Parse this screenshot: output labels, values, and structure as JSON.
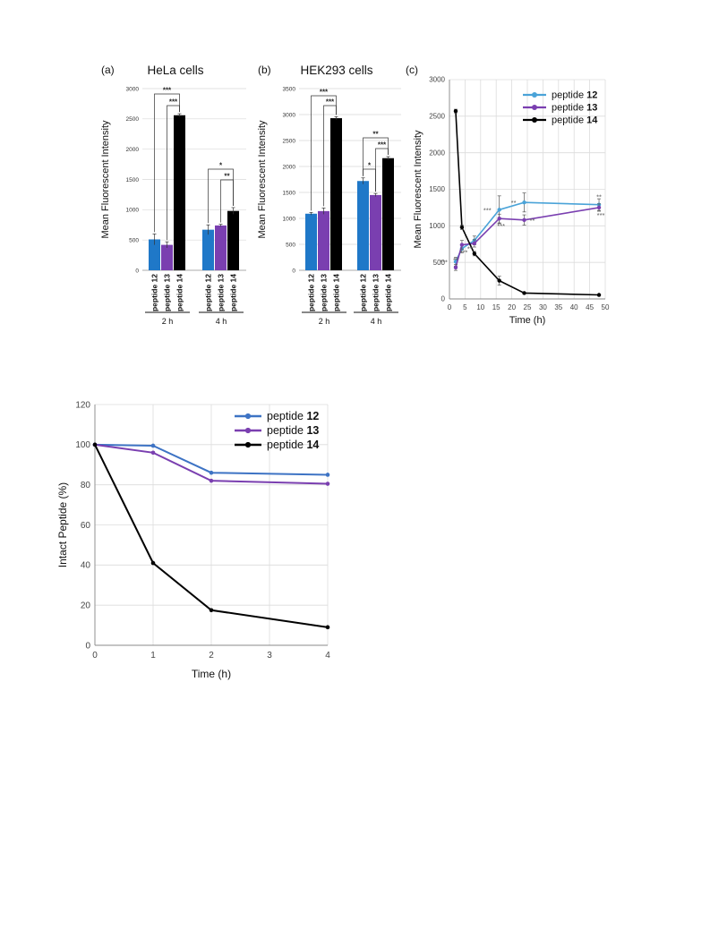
{
  "chart_data": [
    {
      "type": "bar",
      "panel_label": "(a)",
      "title": "HeLa cells",
      "ylabel": "Mean Fluorescent Intensity",
      "ylim": [
        0,
        3000
      ],
      "yticks": [
        0,
        500,
        1000,
        1500,
        2000,
        2500,
        3000
      ],
      "groups": [
        "2 h",
        "4 h"
      ],
      "categories": [
        "peptide 12",
        "peptide 13",
        "peptide 14"
      ],
      "series_colors": [
        "#1f78c8",
        "#7a3fb0",
        "#000000"
      ],
      "values": [
        [
          510,
          420,
          2560
        ],
        [
          670,
          740,
          980
        ]
      ],
      "errors": [
        [
          90,
          50,
          25
        ],
        [
          80,
          20,
          55
        ]
      ],
      "significance": [
        {
          "group": 0,
          "from": 0,
          "to": 2,
          "label": "***"
        },
        {
          "group": 0,
          "from": 1,
          "to": 2,
          "label": "***"
        },
        {
          "group": 1,
          "from": 0,
          "to": 2,
          "label": "*"
        },
        {
          "group": 1,
          "from": 1,
          "to": 2,
          "label": "**"
        }
      ]
    },
    {
      "type": "bar",
      "panel_label": "(b)",
      "title": "HEK293 cells",
      "ylabel": "Mean Fluorescent Intensity",
      "ylim": [
        0,
        3500
      ],
      "yticks": [
        0,
        500,
        1000,
        1500,
        2000,
        2500,
        3000,
        3500
      ],
      "groups": [
        "2 h",
        "4 h"
      ],
      "categories": [
        "peptide 12",
        "peptide 13",
        "peptide 14"
      ],
      "series_colors": [
        "#1f78c8",
        "#7a3fb0",
        "#000000"
      ],
      "values": [
        [
          1090,
          1140,
          2930
        ],
        [
          1720,
          1450,
          2160
        ]
      ],
      "errors": [
        [
          25,
          60,
          30
        ],
        [
          60,
          30,
          30
        ]
      ],
      "significance": [
        {
          "group": 0,
          "from": 0,
          "to": 2,
          "label": "***"
        },
        {
          "group": 0,
          "from": 1,
          "to": 2,
          "label": "***"
        },
        {
          "group": 1,
          "from": 0,
          "to": 2,
          "label": "**"
        },
        {
          "group": 1,
          "from": 0,
          "to": 1,
          "label": "*"
        },
        {
          "group": 1,
          "from": 1,
          "to": 2,
          "label": "***"
        }
      ]
    },
    {
      "type": "line",
      "panel_label": "(c)",
      "xlabel": "Time (h)",
      "ylabel": "Mean Fluorescent Intensity",
      "xlim": [
        0,
        50
      ],
      "ylim": [
        0,
        3000
      ],
      "xticks": [
        0,
        5,
        10,
        15,
        20,
        25,
        30,
        35,
        40,
        45,
        50
      ],
      "yticks": [
        0,
        500,
        1000,
        1500,
        2000,
        2500,
        3000
      ],
      "grid": true,
      "legend": "top-right",
      "series": [
        {
          "name": "peptide 12",
          "color": "#4aa3d8",
          "x": [
            2,
            4,
            8,
            16,
            24,
            48
          ],
          "y": [
            510,
            690,
            800,
            1220,
            1320,
            1290
          ],
          "err": [
            60,
            60,
            60,
            190,
            130,
            80
          ]
        },
        {
          "name": "peptide 13",
          "color": "#7a3fb0",
          "x": [
            2,
            4,
            8,
            16,
            24,
            48
          ],
          "y": [
            430,
            740,
            760,
            1100,
            1080,
            1250
          ],
          "err": [
            40,
            60,
            50,
            60,
            70,
            50
          ]
        },
        {
          "name": "peptide 14",
          "color": "#000000",
          "x": [
            2,
            4,
            8,
            16,
            24,
            48
          ],
          "y": [
            2570,
            980,
            620,
            250,
            80,
            55
          ],
          "err": [
            25,
            30,
            30,
            60,
            10,
            5
          ]
        }
      ],
      "annotations": [
        {
          "x": 2,
          "y": 510,
          "label": "***",
          "pos": "left"
        },
        {
          "x": 2,
          "y": 430,
          "label": "**",
          "pos": "above"
        },
        {
          "x": 4,
          "y": 690,
          "label": "**",
          "pos": "right"
        },
        {
          "x": 4,
          "y": 740,
          "label": "***",
          "pos": "below"
        },
        {
          "x": 16,
          "y": 1220,
          "label": "***",
          "pos": "left"
        },
        {
          "x": 16,
          "y": 1100,
          "label": "***",
          "pos": "below"
        },
        {
          "x": 24,
          "y": 1320,
          "label": "**",
          "pos": "left"
        },
        {
          "x": 24,
          "y": 1080,
          "label": "**",
          "pos": "right"
        },
        {
          "x": 48,
          "y": 1290,
          "label": "**",
          "pos": "above"
        },
        {
          "x": 48,
          "y": 1250,
          "label": "***",
          "pos": "below"
        }
      ]
    },
    {
      "type": "line",
      "xlabel": "Time  (h)",
      "ylabel": "Intact Peptide (%)",
      "xlim": [
        0,
        4
      ],
      "ylim": [
        0,
        120
      ],
      "xticks": [
        0,
        1,
        2,
        3,
        4
      ],
      "yticks": [
        0,
        20,
        40,
        60,
        80,
        100,
        120
      ],
      "grid": true,
      "legend": "top-right",
      "series": [
        {
          "name": "peptide 12",
          "color": "#3d73c4",
          "x": [
            0,
            1,
            2,
            4
          ],
          "y": [
            100,
            99.5,
            86,
            85
          ]
        },
        {
          "name": "peptide 13",
          "color": "#7a3fb0",
          "x": [
            0,
            1,
            2,
            4
          ],
          "y": [
            100,
            96,
            82,
            80.5
          ]
        },
        {
          "name": "peptide 14",
          "color": "#000000",
          "x": [
            0,
            1,
            2,
            4
          ],
          "y": [
            100,
            41,
            17.5,
            9
          ]
        }
      ]
    }
  ]
}
